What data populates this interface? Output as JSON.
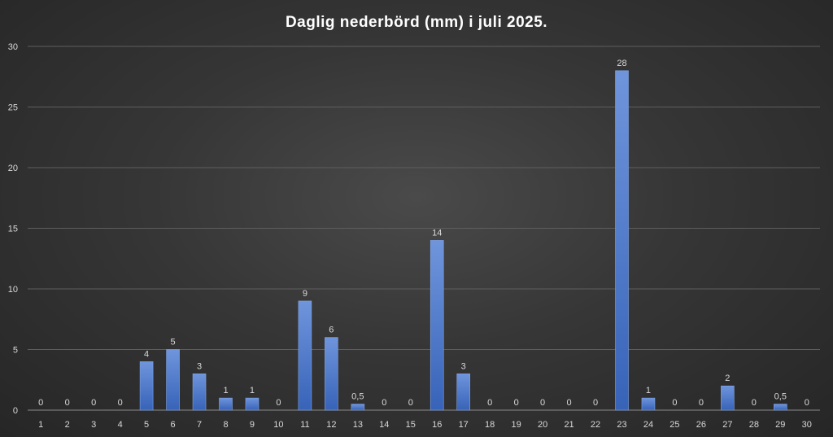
{
  "chart_data": {
    "type": "bar",
    "title": "Daglig nederbörd (mm) i juli 2025.",
    "xlabel": "",
    "ylabel": "",
    "categories": [
      "1",
      "2",
      "3",
      "4",
      "5",
      "6",
      "7",
      "8",
      "9",
      "10",
      "11",
      "12",
      "13",
      "14",
      "15",
      "16",
      "17",
      "18",
      "19",
      "20",
      "21",
      "22",
      "23",
      "24",
      "25",
      "26",
      "27",
      "28",
      "29",
      "30"
    ],
    "values": [
      0,
      0,
      0,
      0,
      4,
      5,
      3,
      1,
      1,
      0,
      9,
      6,
      0.5,
      0,
      0,
      14,
      3,
      0,
      0,
      0,
      0,
      0,
      28,
      1,
      0,
      0,
      2,
      0,
      0.5,
      0
    ],
    "data_labels": [
      "0",
      "0",
      "0",
      "0",
      "4",
      "5",
      "3",
      "1",
      "1",
      "0",
      "9",
      "6",
      "0,5",
      "0",
      "0",
      "14",
      "3",
      "0",
      "0",
      "0",
      "0",
      "0",
      "28",
      "1",
      "0",
      "0",
      "2",
      "0",
      "0,5",
      "0"
    ],
    "ylim": [
      0,
      30
    ],
    "yticks": [
      0,
      5,
      10,
      15,
      20,
      25,
      30
    ],
    "grid": true,
    "legend": "none",
    "bar_color": "#4472c4"
  }
}
